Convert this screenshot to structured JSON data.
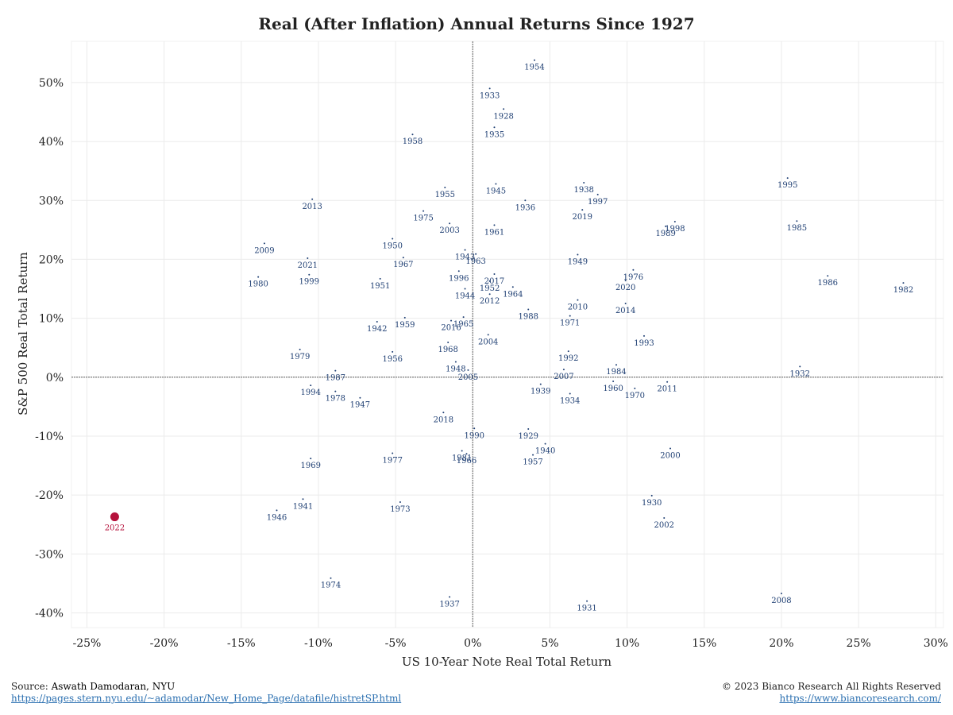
{
  "chart_data": {
    "type": "scatter",
    "title": "Real (After Inflation) Annual Returns Since 1927",
    "xlabel": "US 10-Year Note Real Total Return",
    "ylabel": "S&P 500 Real Total Return",
    "xlim": [
      -0.26,
      0.305
    ],
    "ylim": [
      -0.425,
      0.57
    ],
    "x_ticks": [
      -0.25,
      -0.2,
      -0.15,
      -0.1,
      -0.05,
      0,
      0.05,
      0.1,
      0.15,
      0.2,
      0.25,
      0.3
    ],
    "x_tick_labels": [
      "-25%",
      "-20%",
      "-15%",
      "-10%",
      "-5%",
      "0%",
      "5%",
      "10%",
      "15%",
      "20%",
      "25%",
      "30%"
    ],
    "y_ticks": [
      -0.4,
      -0.3,
      -0.2,
      -0.1,
      0,
      0.1,
      0.2,
      0.3,
      0.4,
      0.5
    ],
    "y_tick_labels": [
      "-40%",
      "-30%",
      "-20%",
      "-10%",
      "0%",
      "10%",
      "20%",
      "30%",
      "40%",
      "50%"
    ],
    "grid": true,
    "point_color": "#1f3f73",
    "highlight_color": "#b5123c",
    "highlight_year": "2022",
    "points": [
      {
        "year": "1954",
        "x": 0.04,
        "y": 0.538
      },
      {
        "year": "1933",
        "x": 0.011,
        "y": 0.49
      },
      {
        "year": "1928",
        "x": 0.02,
        "y": 0.455
      },
      {
        "year": "1935",
        "x": 0.014,
        "y": 0.424
      },
      {
        "year": "1958",
        "x": -0.039,
        "y": 0.412
      },
      {
        "year": "1995",
        "x": 0.204,
        "y": 0.338
      },
      {
        "year": "1945",
        "x": 0.015,
        "y": 0.328
      },
      {
        "year": "1938",
        "x": 0.072,
        "y": 0.33
      },
      {
        "year": "1955",
        "x": -0.018,
        "y": 0.322
      },
      {
        "year": "1997",
        "x": 0.081,
        "y": 0.31
      },
      {
        "year": "1936",
        "x": 0.034,
        "y": 0.3
      },
      {
        "year": "2013",
        "x": -0.104,
        "y": 0.302
      },
      {
        "year": "1975",
        "x": -0.032,
        "y": 0.282
      },
      {
        "year": "2019",
        "x": 0.071,
        "y": 0.284
      },
      {
        "year": "1998",
        "x": 0.131,
        "y": 0.264
      },
      {
        "year": "1985",
        "x": 0.21,
        "y": 0.265
      },
      {
        "year": "1989",
        "x": 0.125,
        "y": 0.256
      },
      {
        "year": "2003",
        "x": -0.015,
        "y": 0.261
      },
      {
        "year": "1961",
        "x": 0.014,
        "y": 0.258
      },
      {
        "year": "2009",
        "x": -0.135,
        "y": 0.227
      },
      {
        "year": "1950",
        "x": -0.052,
        "y": 0.235
      },
      {
        "year": "1943",
        "x": -0.005,
        "y": 0.216
      },
      {
        "year": "1963",
        "x": 0.002,
        "y": 0.209
      },
      {
        "year": "1949",
        "x": 0.068,
        "y": 0.208
      },
      {
        "year": "2021",
        "x": -0.107,
        "y": 0.202
      },
      {
        "year": "1967",
        "x": -0.045,
        "y": 0.203
      },
      {
        "year": "1976",
        "x": 0.104,
        "y": 0.182
      },
      {
        "year": "1996",
        "x": -0.009,
        "y": 0.18
      },
      {
        "year": "2017",
        "x": 0.014,
        "y": 0.175
      },
      {
        "year": "1980",
        "x": -0.139,
        "y": 0.17
      },
      {
        "year": "1999",
        "x": -0.106,
        "y": 0.174
      },
      {
        "year": "1986",
        "x": 0.23,
        "y": 0.172
      },
      {
        "year": "1951",
        "x": -0.06,
        "y": 0.167
      },
      {
        "year": "1952",
        "x": 0.011,
        "y": 0.163
      },
      {
        "year": "2020",
        "x": 0.099,
        "y": 0.164
      },
      {
        "year": "1982",
        "x": 0.279,
        "y": 0.16
      },
      {
        "year": "1944",
        "x": -0.005,
        "y": 0.15
      },
      {
        "year": "1964",
        "x": 0.026,
        "y": 0.153
      },
      {
        "year": "2012",
        "x": 0.011,
        "y": 0.141
      },
      {
        "year": "2010",
        "x": 0.068,
        "y": 0.131
      },
      {
        "year": "2014",
        "x": 0.099,
        "y": 0.125
      },
      {
        "year": "1988",
        "x": 0.036,
        "y": 0.115
      },
      {
        "year": "1965",
        "x": -0.006,
        "y": 0.102
      },
      {
        "year": "1942",
        "x": -0.062,
        "y": 0.094
      },
      {
        "year": "1959",
        "x": -0.044,
        "y": 0.101
      },
      {
        "year": "2016",
        "x": -0.014,
        "y": 0.096
      },
      {
        "year": "1971",
        "x": 0.063,
        "y": 0.104
      },
      {
        "year": "2004",
        "x": 0.01,
        "y": 0.072
      },
      {
        "year": "1993",
        "x": 0.111,
        "y": 0.07
      },
      {
        "year": "1968",
        "x": -0.016,
        "y": 0.059
      },
      {
        "year": "1979",
        "x": -0.112,
        "y": 0.047
      },
      {
        "year": "1956",
        "x": -0.052,
        "y": 0.043
      },
      {
        "year": "1992",
        "x": 0.062,
        "y": 0.044
      },
      {
        "year": "1948",
        "x": -0.011,
        "y": 0.026
      },
      {
        "year": "2005",
        "x": -0.003,
        "y": 0.012
      },
      {
        "year": "1987",
        "x": -0.089,
        "y": 0.011
      },
      {
        "year": "2007",
        "x": 0.059,
        "y": 0.013
      },
      {
        "year": "1984",
        "x": 0.093,
        "y": 0.021
      },
      {
        "year": "1932",
        "x": 0.212,
        "y": 0.018
      },
      {
        "year": "1960",
        "x": 0.091,
        "y": -0.007
      },
      {
        "year": "2011",
        "x": 0.126,
        "y": -0.008
      },
      {
        "year": "1970",
        "x": 0.105,
        "y": -0.019
      },
      {
        "year": "1994",
        "x": -0.105,
        "y": -0.014
      },
      {
        "year": "1978",
        "x": -0.089,
        "y": -0.024
      },
      {
        "year": "1939",
        "x": 0.044,
        "y": -0.012
      },
      {
        "year": "1934",
        "x": 0.063,
        "y": -0.028
      },
      {
        "year": "1947",
        "x": -0.073,
        "y": -0.035
      },
      {
        "year": "2018",
        "x": -0.019,
        "y": -0.06
      },
      {
        "year": "1929",
        "x": 0.036,
        "y": -0.088
      },
      {
        "year": "1990",
        "x": 0.001,
        "y": -0.087
      },
      {
        "year": "1940",
        "x": 0.047,
        "y": -0.113
      },
      {
        "year": "1981",
        "x": -0.007,
        "y": -0.125
      },
      {
        "year": "1966",
        "x": -0.004,
        "y": -0.13
      },
      {
        "year": "1957",
        "x": 0.039,
        "y": -0.132
      },
      {
        "year": "1977",
        "x": -0.052,
        "y": -0.129
      },
      {
        "year": "2000",
        "x": 0.128,
        "y": -0.121
      },
      {
        "year": "1969",
        "x": -0.105,
        "y": -0.138
      },
      {
        "year": "1930",
        "x": 0.116,
        "y": -0.201
      },
      {
        "year": "1941",
        "x": -0.11,
        "y": -0.207
      },
      {
        "year": "1946",
        "x": -0.127,
        "y": -0.226
      },
      {
        "year": "1973",
        "x": -0.047,
        "y": -0.212
      },
      {
        "year": "2002",
        "x": 0.124,
        "y": -0.239
      },
      {
        "year": "2022",
        "x": -0.232,
        "y": -0.237
      },
      {
        "year": "1974",
        "x": -0.092,
        "y": -0.341
      },
      {
        "year": "1937",
        "x": -0.015,
        "y": -0.373
      },
      {
        "year": "1931",
        "x": 0.074,
        "y": -0.38
      },
      {
        "year": "2008",
        "x": 0.2,
        "y": -0.367
      }
    ]
  },
  "footer": {
    "source_prefix": "Source:",
    "source_name": "Aswath Damodaran, NYU",
    "source_url": "https://pages.stern.nyu.edu/~adamodar/New_Home_Page/datafile/histretSP.html",
    "copyright": "© 2023 Bianco Research All Rights Reserved",
    "site_url": "https://www.biancoresearch.com/"
  }
}
